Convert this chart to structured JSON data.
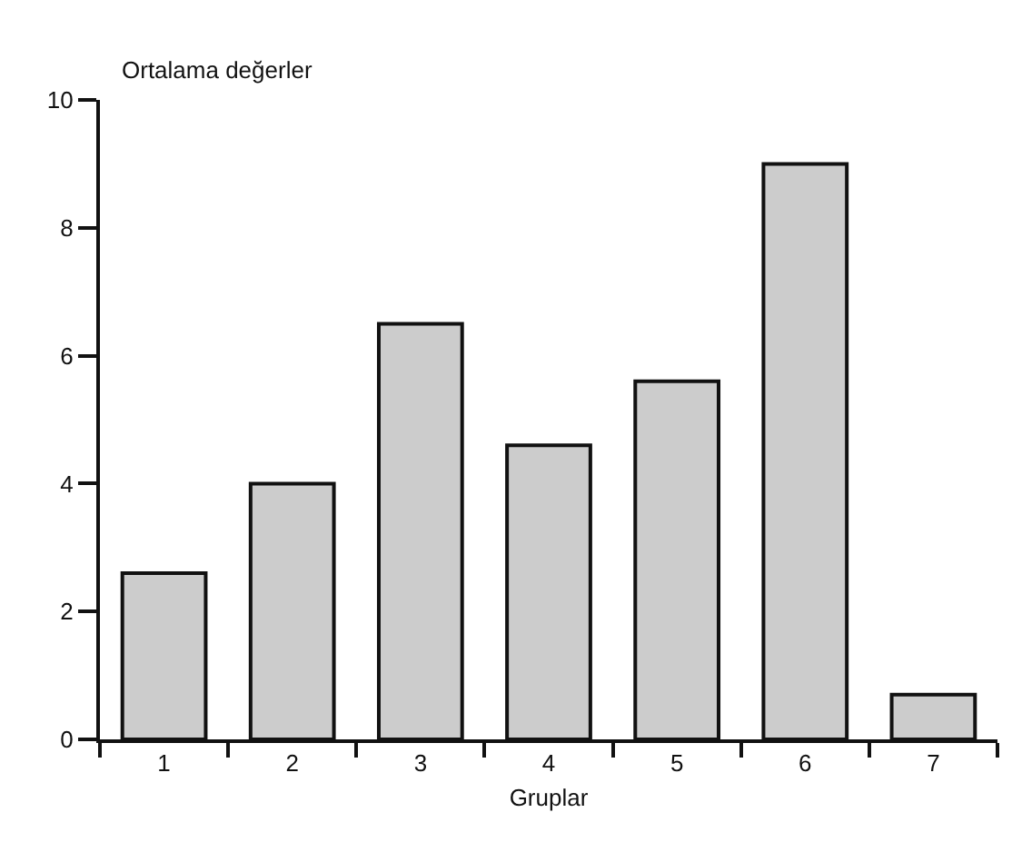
{
  "chart_data": {
    "type": "bar",
    "xlabel": "Gruplar",
    "ylabel": "Ortalama değerler",
    "categories": [
      "1",
      "2",
      "3",
      "4",
      "5",
      "6",
      "7"
    ],
    "values": [
      2.6,
      4.0,
      6.5,
      4.6,
      5.6,
      9.0,
      0.7
    ],
    "color": "#cccccc",
    "ylim": [
      0,
      10
    ],
    "yticks": [
      0,
      2,
      4,
      6,
      8,
      10
    ],
    "grid": false,
    "legend": false
  }
}
